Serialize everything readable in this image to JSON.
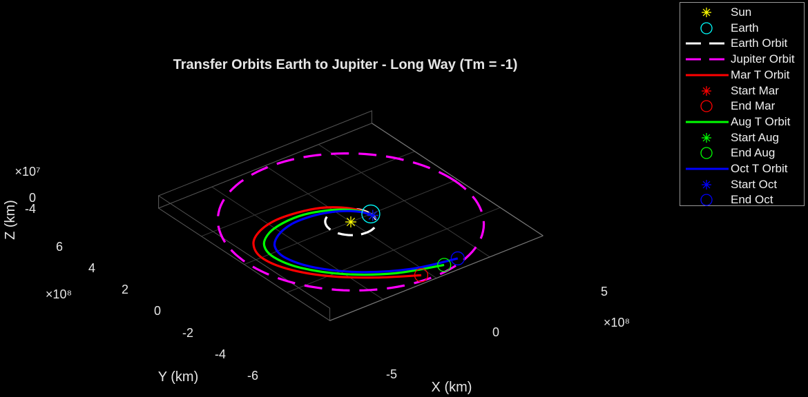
{
  "chart_data": {
    "type": "line",
    "title": "Transfer Orbits Earth to Jupiter - Long Way (Tm = -1)",
    "xlabel": "X (km)",
    "ylabel": "Y (km)",
    "zlabel": "Z (km)",
    "x_exponent": "×10⁸",
    "y_exponent": "×10⁸",
    "z_exponent": "×10⁷",
    "x_ticks": [
      "-5",
      "0",
      "5"
    ],
    "y_ticks": [
      "-6",
      "-4",
      "-2",
      "0",
      "2",
      "4",
      "6"
    ],
    "z_ticks": [
      "-4",
      "0"
    ],
    "xlim": [
      -8,
      8
    ],
    "ylim": [
      -8,
      8
    ],
    "grid": true,
    "background": "#000000",
    "legend_position": "top-right outside",
    "series": [
      {
        "name": "Sun",
        "kind": "marker",
        "marker": "asterisk",
        "color": "#ffff00",
        "x": 0,
        "y": 0
      },
      {
        "name": "Earth",
        "kind": "marker",
        "marker": "circle",
        "color": "#00ffff",
        "x": 1.5,
        "y": 0.0
      },
      {
        "name": "Earth Orbit",
        "kind": "circle",
        "style": "dashed",
        "color": "#ffffff",
        "radius": 1.5
      },
      {
        "name": "Jupiter Orbit",
        "kind": "circle",
        "style": "dashed",
        "color": "#ff00ff",
        "radius": 7.78
      },
      {
        "name": "Mar T Orbit",
        "kind": "transfer",
        "color": "#ff0000",
        "x": [
          1.49,
          1.2,
          0.6,
          -0.4,
          -1.8,
          -3.4,
          -4.9,
          -6.1,
          -6.7,
          -6.3,
          -4.9,
          -2.8,
          -0.5
        ],
        "y": [
          -0.2,
          0.8,
          1.6,
          2.3,
          2.7,
          2.8,
          2.4,
          1.5,
          0.0,
          -1.9,
          -4.0,
          -5.8,
          -7.2
        ]
      },
      {
        "name": "Start Mar",
        "kind": "marker",
        "marker": "asterisk",
        "color": "#ff0000",
        "x": 1.49,
        "y": -0.2
      },
      {
        "name": "End Mar",
        "kind": "marker",
        "marker": "circle",
        "color": "#ff0000",
        "x": -0.5,
        "y": -7.2
      },
      {
        "name": "Aug T Orbit",
        "kind": "transfer",
        "color": "#00ff00",
        "x": [
          1.49,
          1.2,
          0.6,
          -0.4,
          -1.7,
          -3.2,
          -4.6,
          -5.7,
          -6.1,
          -5.6,
          -4.0,
          -1.6,
          1.3
        ],
        "y": [
          -0.2,
          0.6,
          1.3,
          1.9,
          2.3,
          2.3,
          1.9,
          1.0,
          -0.4,
          -2.3,
          -4.4,
          -6.1,
          -7.1
        ]
      },
      {
        "name": "Start Aug",
        "kind": "marker",
        "marker": "asterisk",
        "color": "#00ff00",
        "x": 1.49,
        "y": -0.2
      },
      {
        "name": "End Aug",
        "kind": "marker",
        "marker": "circle",
        "color": "#00ff00",
        "x": 1.3,
        "y": -7.1
      },
      {
        "name": "Oct T Orbit",
        "kind": "transfer",
        "color": "#0000ff",
        "x": [
          1.49,
          1.2,
          0.6,
          -0.3,
          -1.5,
          -2.9,
          -4.3,
          -5.3,
          -5.6,
          -4.9,
          -3.1,
          -0.5,
          2.4
        ],
        "y": [
          -0.2,
          0.5,
          1.1,
          1.6,
          1.9,
          1.9,
          1.4,
          0.5,
          -0.9,
          -2.8,
          -4.8,
          -6.3,
          -7.0
        ]
      },
      {
        "name": "Start Oct",
        "kind": "marker",
        "marker": "asterisk",
        "color": "#0000ff",
        "x": 1.49,
        "y": -0.2
      },
      {
        "name": "End Oct",
        "kind": "marker",
        "marker": "circle",
        "color": "#0000ff",
        "x": 2.4,
        "y": -7.0
      }
    ]
  },
  "legend": {
    "items": [
      {
        "label": "Sun",
        "symbol": "asterisk",
        "color": "#ffff00"
      },
      {
        "label": "Earth",
        "symbol": "circle",
        "color": "#00ffff"
      },
      {
        "label": "Earth Orbit",
        "symbol": "dash",
        "color": "#ffffff"
      },
      {
        "label": "Jupiter Orbit",
        "symbol": "dash",
        "color": "#ff00ff"
      },
      {
        "label": "Mar T Orbit",
        "symbol": "line",
        "color": "#ff0000"
      },
      {
        "label": "Start Mar",
        "symbol": "asterisk",
        "color": "#ff0000"
      },
      {
        "label": "End Mar",
        "symbol": "circle",
        "color": "#ff0000"
      },
      {
        "label": "Aug T Orbit",
        "symbol": "line",
        "color": "#00ff00"
      },
      {
        "label": "Start Aug",
        "symbol": "asterisk",
        "color": "#00ff00"
      },
      {
        "label": "End Aug",
        "symbol": "circle",
        "color": "#00ff00"
      },
      {
        "label": "Oct T Orbit",
        "symbol": "line",
        "color": "#0000ff"
      },
      {
        "label": "Start Oct",
        "symbol": "asterisk",
        "color": "#0000ff"
      },
      {
        "label": "End Oct",
        "symbol": "circle",
        "color": "#0000ff"
      }
    ]
  }
}
